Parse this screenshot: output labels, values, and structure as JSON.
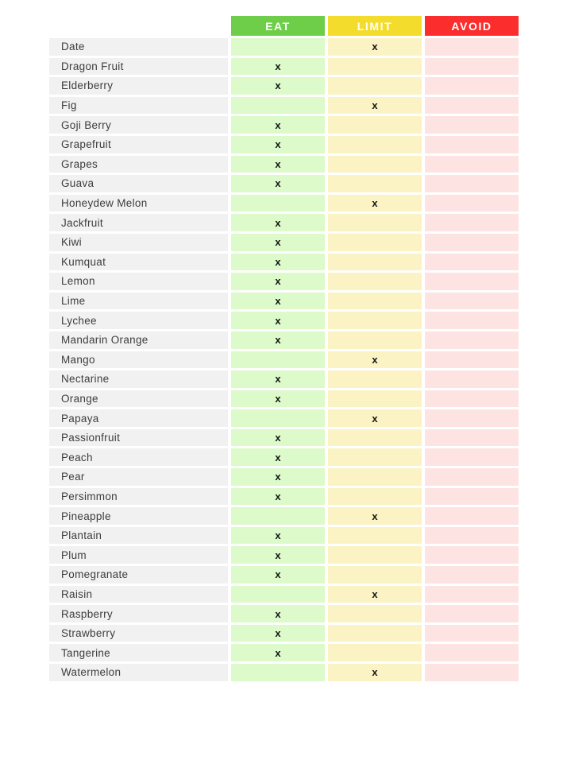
{
  "chart_data": {
    "type": "table",
    "marker": "x",
    "name_column_color": "#F1F1F1",
    "columns": [
      {
        "id": "eat",
        "label": "EAT",
        "header_color": "#6FCE49",
        "cell_color": "#DCFACA"
      },
      {
        "id": "limit",
        "label": "LIMIT",
        "header_color": "#F4DC2D",
        "cell_color": "#FBF3C3"
      },
      {
        "id": "avoid",
        "label": "AVOID",
        "header_color": "#FB2D2D",
        "cell_color": "#FDE3E2"
      }
    ],
    "rows": [
      {
        "fruit": "Date",
        "category": "limit"
      },
      {
        "fruit": "Dragon Fruit",
        "category": "eat"
      },
      {
        "fruit": "Elderberry",
        "category": "eat"
      },
      {
        "fruit": "Fig",
        "category": "limit"
      },
      {
        "fruit": "Goji Berry",
        "category": "eat"
      },
      {
        "fruit": "Grapefruit",
        "category": "eat"
      },
      {
        "fruit": "Grapes",
        "category": "eat"
      },
      {
        "fruit": "Guava",
        "category": "eat"
      },
      {
        "fruit": "Honeydew Melon",
        "category": "limit"
      },
      {
        "fruit": "Jackfruit",
        "category": "eat"
      },
      {
        "fruit": "Kiwi",
        "category": "eat"
      },
      {
        "fruit": "Kumquat",
        "category": "eat"
      },
      {
        "fruit": "Lemon",
        "category": "eat"
      },
      {
        "fruit": "Lime",
        "category": "eat"
      },
      {
        "fruit": "Lychee",
        "category": "eat"
      },
      {
        "fruit": "Mandarin Orange",
        "category": "eat"
      },
      {
        "fruit": "Mango",
        "category": "limit"
      },
      {
        "fruit": "Nectarine",
        "category": "eat"
      },
      {
        "fruit": "Orange",
        "category": "eat"
      },
      {
        "fruit": "Papaya",
        "category": "limit"
      },
      {
        "fruit": "Passionfruit",
        "category": "eat"
      },
      {
        "fruit": "Peach",
        "category": "eat"
      },
      {
        "fruit": "Pear",
        "category": "eat"
      },
      {
        "fruit": "Persimmon",
        "category": "eat"
      },
      {
        "fruit": "Pineapple",
        "category": "limit"
      },
      {
        "fruit": "Plantain",
        "category": "eat"
      },
      {
        "fruit": "Plum",
        "category": "eat"
      },
      {
        "fruit": "Pomegranate",
        "category": "eat"
      },
      {
        "fruit": "Raisin",
        "category": "limit"
      },
      {
        "fruit": "Raspberry",
        "category": "eat"
      },
      {
        "fruit": "Strawberry",
        "category": "eat"
      },
      {
        "fruit": "Tangerine",
        "category": "eat"
      },
      {
        "fruit": "Watermelon",
        "category": "limit"
      }
    ]
  }
}
